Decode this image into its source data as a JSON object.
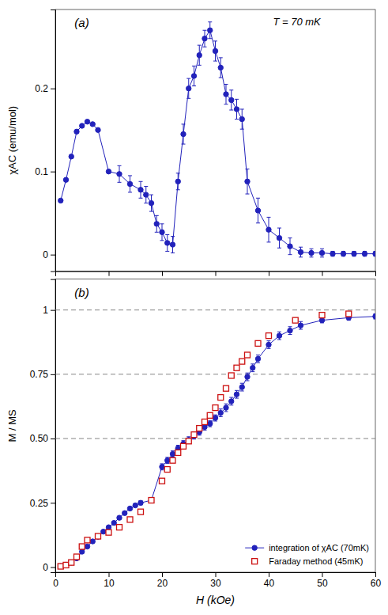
{
  "chart_data": [
    {
      "type": "line",
      "ylabel": "χAC (emu/mol)",
      "annotations": [
        "(a)",
        "T = 70 mK"
      ],
      "xlim": [
        0,
        60
      ],
      "xticks": [
        0,
        10,
        20,
        30,
        40,
        50,
        60
      ],
      "ylim": [
        -0.02,
        0.295
      ],
      "yticks": [
        0,
        0.1,
        0.2
      ],
      "tick_labels": "y",
      "grid": false,
      "series": [
        {
          "type": "line",
          "color": "#2222bb",
          "marker": "circle",
          "line_style": "solid",
          "x": [
            1,
            2,
            3,
            4,
            5,
            6,
            7,
            8,
            10,
            12,
            14,
            16,
            17,
            18,
            19,
            20,
            21,
            22,
            23,
            24,
            25,
            26,
            27,
            28,
            29,
            30,
            31,
            32,
            33,
            34,
            35,
            36,
            38,
            40,
            42,
            44,
            46,
            48,
            50,
            52,
            54,
            56,
            58,
            60
          ],
          "values": [
            0.065,
            0.09,
            0.118,
            0.148,
            0.155,
            0.16,
            0.157,
            0.15,
            0.1,
            0.097,
            0.085,
            0.078,
            0.072,
            0.062,
            0.037,
            0.027,
            0.014,
            0.012,
            0.088,
            0.145,
            0.2,
            0.215,
            0.24,
            0.26,
            0.27,
            0.245,
            0.225,
            0.193,
            0.186,
            0.175,
            0.163,
            0.088,
            0.053,
            0.03,
            0.02,
            0.01,
            0.003,
            0.002,
            0.002,
            0.001,
            0.001,
            0.001,
            0.001,
            0.001
          ],
          "yerr": [
            0,
            0,
            0,
            0,
            0,
            0,
            0,
            0,
            0,
            0.01,
            0.01,
            0.01,
            0.01,
            0.01,
            0.01,
            0.01,
            0.01,
            0.01,
            0.01,
            0.012,
            0.012,
            0.012,
            0.012,
            0.01,
            0.01,
            0.012,
            0.012,
            0.012,
            0.012,
            0.012,
            0.012,
            0.015,
            0.015,
            0.015,
            0.012,
            0.01,
            0.006,
            0.005,
            0.005,
            0.003,
            0.003,
            0.003,
            0.003,
            0.003
          ]
        }
      ]
    },
    {
      "type": "line",
      "ylabel": "M / MS",
      "xlabel": "H (kOe)",
      "annotations": [
        "(b)"
      ],
      "xlim": [
        0,
        60
      ],
      "xticks": [
        0,
        10,
        20,
        30,
        40,
        50,
        60
      ],
      "ylim": [
        -0.02,
        1.12
      ],
      "yticks": [
        0,
        0.25,
        {
          "value": 0.5,
          "label": "0.50"
        },
        0.75,
        1
      ],
      "hlines": [
        0.5,
        0.75,
        1.0
      ],
      "grid": false,
      "legend": "lower right",
      "series": [
        {
          "name": "integration of χAC (70mK)",
          "type": "line",
          "color": "#2222bb",
          "marker": "circle",
          "line_style": "solid",
          "x": [
            1,
            2,
            3,
            4,
            5,
            6,
            7,
            8,
            9,
            10,
            11,
            12,
            13,
            14,
            15,
            16,
            18,
            20,
            21,
            22,
            23,
            24,
            25,
            26,
            27,
            28,
            29,
            30,
            31,
            32,
            33,
            34,
            35,
            36,
            37,
            38,
            40,
            42,
            44,
            46,
            50,
            55,
            60
          ],
          "values": [
            0.004,
            0.009,
            0.018,
            0.034,
            0.06,
            0.08,
            0.1,
            0.118,
            0.138,
            0.155,
            0.172,
            0.192,
            0.21,
            0.228,
            0.24,
            0.25,
            0.26,
            0.39,
            0.415,
            0.44,
            0.462,
            0.48,
            0.495,
            0.51,
            0.525,
            0.545,
            0.558,
            0.58,
            0.6,
            0.62,
            0.645,
            0.672,
            0.7,
            0.74,
            0.775,
            0.81,
            0.865,
            0.9,
            0.92,
            0.94,
            0.96,
            0.97,
            0.975
          ],
          "yerr": [
            0.003,
            0.003,
            0.004,
            0.004,
            0.005,
            0.005,
            0.005,
            0.005,
            0.005,
            0.005,
            0.005,
            0.005,
            0.006,
            0.006,
            0.006,
            0.008,
            0.008,
            0.012,
            0.012,
            0.012,
            0.012,
            0.012,
            0.012,
            0.012,
            0.012,
            0.012,
            0.012,
            0.012,
            0.015,
            0.015,
            0.015,
            0.015,
            0.015,
            0.015,
            0.015,
            0.015,
            0.015,
            0.015,
            0.015,
            0.015,
            0.01,
            0.01,
            0.01
          ]
        },
        {
          "name": "Faraday method (45mK)",
          "type": "scatter",
          "color": "#cc1111",
          "marker": "square",
          "line_style": "none",
          "x": [
            1,
            2,
            3,
            4,
            5,
            6,
            8,
            10,
            12,
            14,
            16,
            18,
            20,
            21,
            22,
            23,
            24,
            25,
            26,
            27,
            28,
            29,
            30,
            31,
            32,
            33,
            34,
            35,
            36,
            38,
            40,
            45,
            50,
            55
          ],
          "values": [
            0.003,
            0.008,
            0.018,
            0.04,
            0.08,
            0.105,
            0.12,
            0.135,
            0.155,
            0.185,
            0.215,
            0.26,
            0.335,
            0.38,
            0.415,
            0.445,
            0.47,
            0.49,
            0.515,
            0.54,
            0.565,
            0.59,
            0.62,
            0.66,
            0.695,
            0.745,
            0.775,
            0.8,
            0.825,
            0.87,
            0.9,
            0.96,
            0.98,
            0.985
          ]
        }
      ]
    }
  ]
}
